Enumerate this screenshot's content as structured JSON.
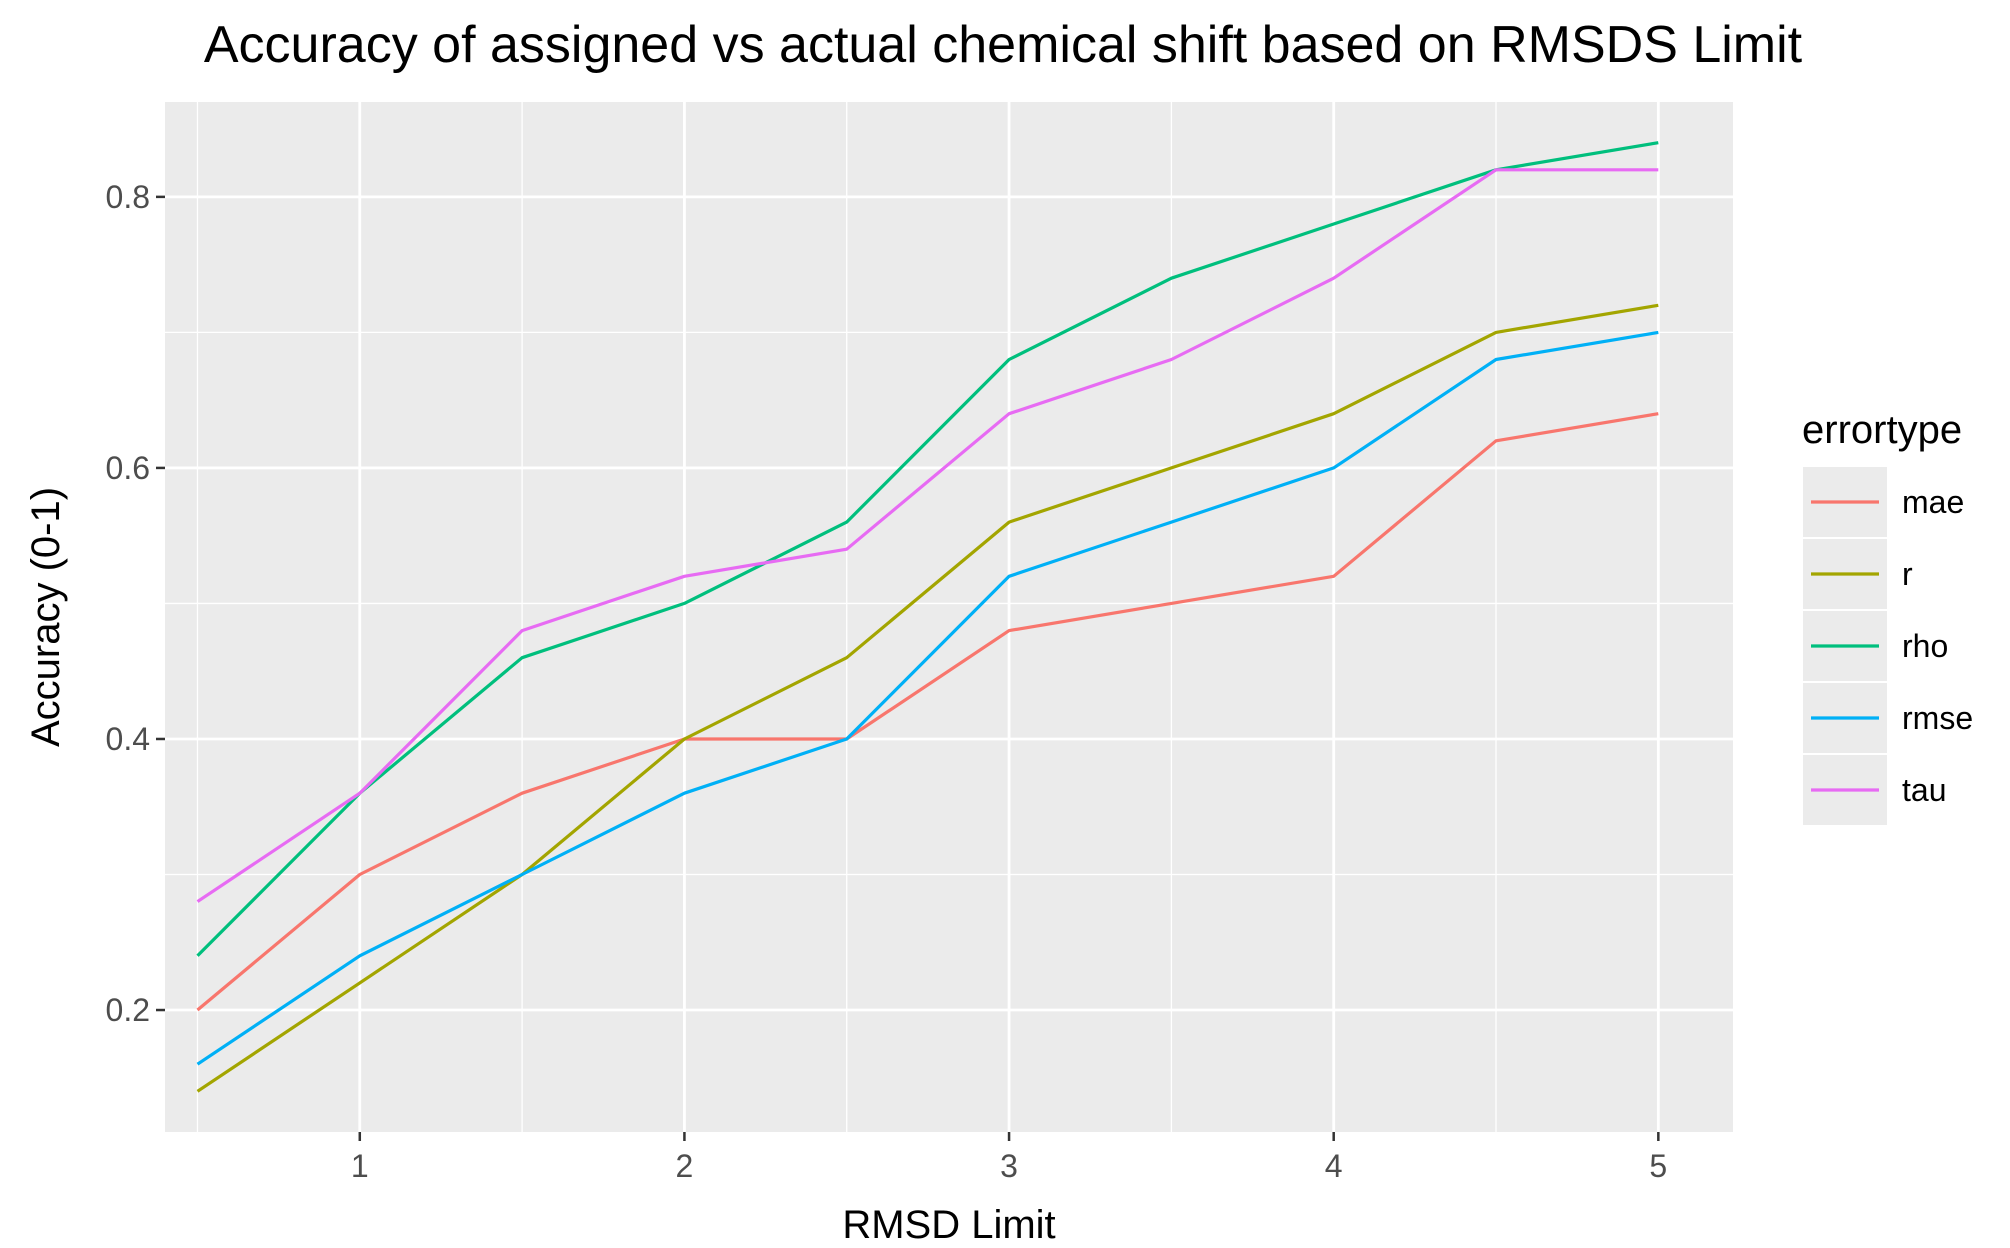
{
  "chart_data": {
    "type": "line",
    "title": "Accuracy of assigned vs  actual chemical shift based on RMSDS Limit",
    "xlabel": "RMSD Limit",
    "ylabel": "Accuracy (0-1)",
    "x": [
      0.5,
      1,
      1.5,
      2,
      2.5,
      3,
      3.5,
      4,
      4.5,
      5
    ],
    "xlim": [
      0.4,
      5.23
    ],
    "ylim": [
      0.11,
      0.87
    ],
    "x_ticks": [
      1,
      2,
      3,
      4,
      5
    ],
    "x_tick_labels": [
      "1",
      "2",
      "3",
      "4",
      "5"
    ],
    "y_ticks": [
      0.2,
      0.4,
      0.6,
      0.8
    ],
    "y_tick_labels": [
      "0.2",
      "0.4",
      "0.6",
      "0.8"
    ],
    "panel_background": "#ebebeb",
    "grid_color": "#ffffff",
    "grid": true,
    "legend_title": "errortype",
    "legend_position": "right",
    "series": [
      {
        "name": "mae",
        "color": "#F8766D",
        "values": [
          0.2,
          0.3,
          0.36,
          0.4,
          0.4,
          0.48,
          0.5,
          0.52,
          0.62,
          0.64
        ]
      },
      {
        "name": "r",
        "color": "#A3A500",
        "values": [
          0.14,
          0.22,
          0.3,
          0.4,
          0.46,
          0.56,
          0.6,
          0.64,
          0.7,
          0.72
        ]
      },
      {
        "name": "rho",
        "color": "#00BF7D",
        "values": [
          0.24,
          0.36,
          0.46,
          0.5,
          0.56,
          0.68,
          0.74,
          0.78,
          0.82,
          0.84
        ]
      },
      {
        "name": "rmse",
        "color": "#00B0F6",
        "values": [
          0.16,
          0.24,
          0.3,
          0.36,
          0.4,
          0.52,
          0.56,
          0.6,
          0.68,
          0.7
        ]
      },
      {
        "name": "tau",
        "color": "#E76BF3",
        "values": [
          0.28,
          0.36,
          0.48,
          0.52,
          0.54,
          0.64,
          0.68,
          0.74,
          0.82,
          0.82
        ]
      }
    ]
  }
}
